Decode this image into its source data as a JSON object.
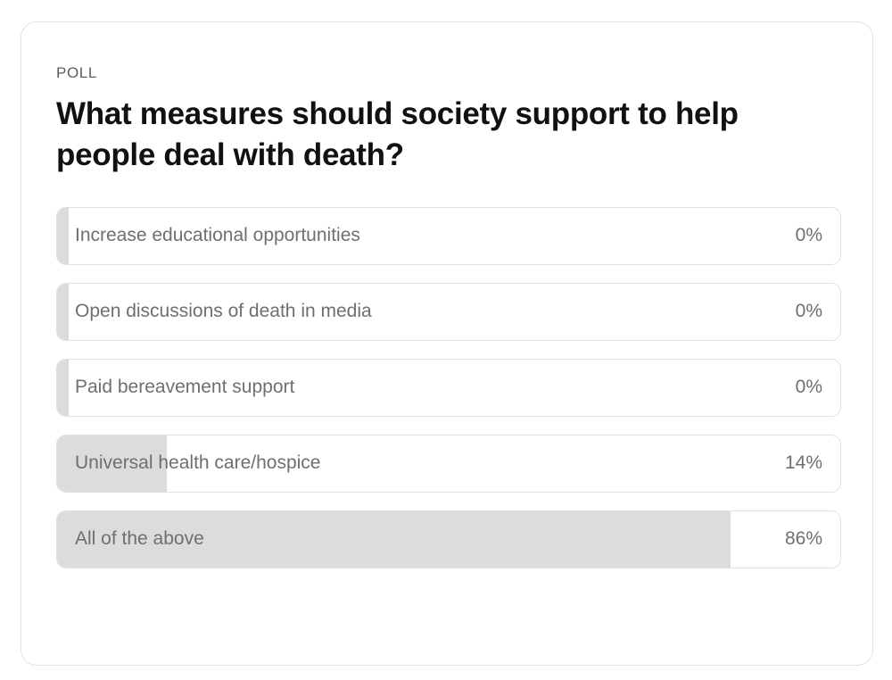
{
  "poll": {
    "eyebrow": "POLL",
    "question": "What measures should society support to help people deal with death?",
    "options": [
      {
        "label": "Increase educational opportunities",
        "percent_text": "0%",
        "share": 0
      },
      {
        "label": "Open discussions of death in media",
        "percent_text": "0%",
        "share": 0
      },
      {
        "label": "Paid bereavement support",
        "percent_text": "0%",
        "share": 0
      },
      {
        "label": "Universal health care/hospice",
        "percent_text": "14%",
        "share": 0.14
      },
      {
        "label": "All of the above",
        "percent_text": "86%",
        "share": 0.86
      }
    ]
  },
  "colors": {
    "fill": "#dcdcdc",
    "border": "#e0e0e0",
    "text_muted": "#6f6f6f",
    "title": "#111111"
  }
}
